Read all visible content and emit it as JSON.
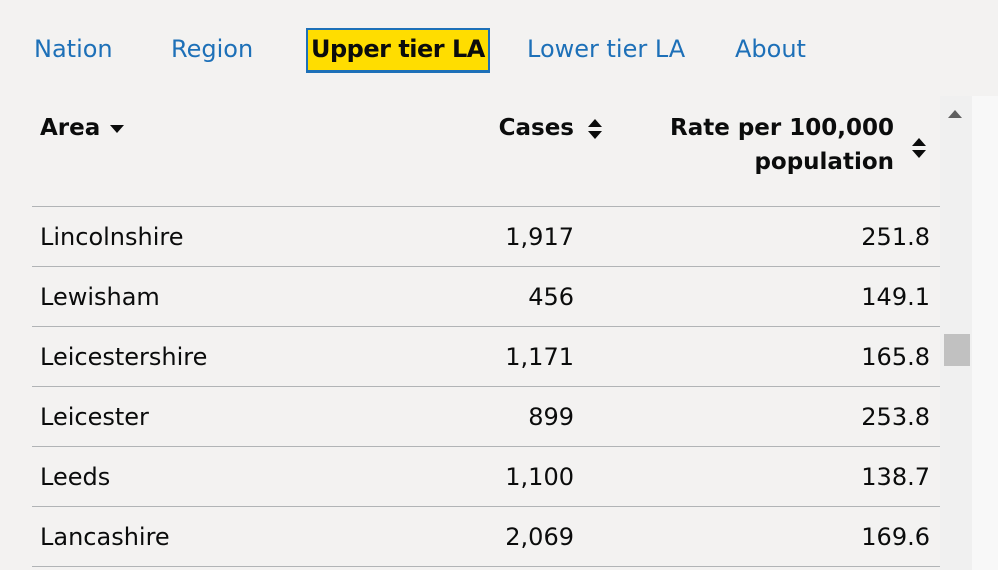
{
  "tabs": [
    {
      "label": "Nation",
      "active": false
    },
    {
      "label": "Region",
      "active": false
    },
    {
      "label": "Upper tier LA",
      "active": true
    },
    {
      "label": "Lower tier LA",
      "active": false
    },
    {
      "label": "About",
      "active": false
    }
  ],
  "table": {
    "headers": {
      "area": "Area",
      "cases": "Cases",
      "rate_line1": "Rate per 100,000",
      "rate_line2": "population"
    },
    "sort": {
      "column": "area",
      "direction": "descending"
    },
    "rows": [
      {
        "area": "Lincolnshire",
        "cases": "1,917",
        "rate": "251.8"
      },
      {
        "area": "Lewisham",
        "cases": "456",
        "rate": "149.1"
      },
      {
        "area": "Leicestershire",
        "cases": "1,171",
        "rate": "165.8"
      },
      {
        "area": "Leicester",
        "cases": "899",
        "rate": "253.8"
      },
      {
        "area": "Leeds",
        "cases": "1,100",
        "rate": "138.7"
      },
      {
        "area": "Lancashire",
        "cases": "2,069",
        "rate": "169.6"
      }
    ]
  },
  "colors": {
    "link": "#1d70b8",
    "active_tab_bg": "#ffdd00",
    "text": "#0b0c0c",
    "divider": "#b1b4b6",
    "page_bg": "#f3f2f1"
  },
  "icons": {
    "area_sort": "caret-down-icon",
    "cases_sort": "sort-both-icon",
    "rate_sort": "sort-both-icon",
    "scroll_up": "arrow-up-icon"
  }
}
